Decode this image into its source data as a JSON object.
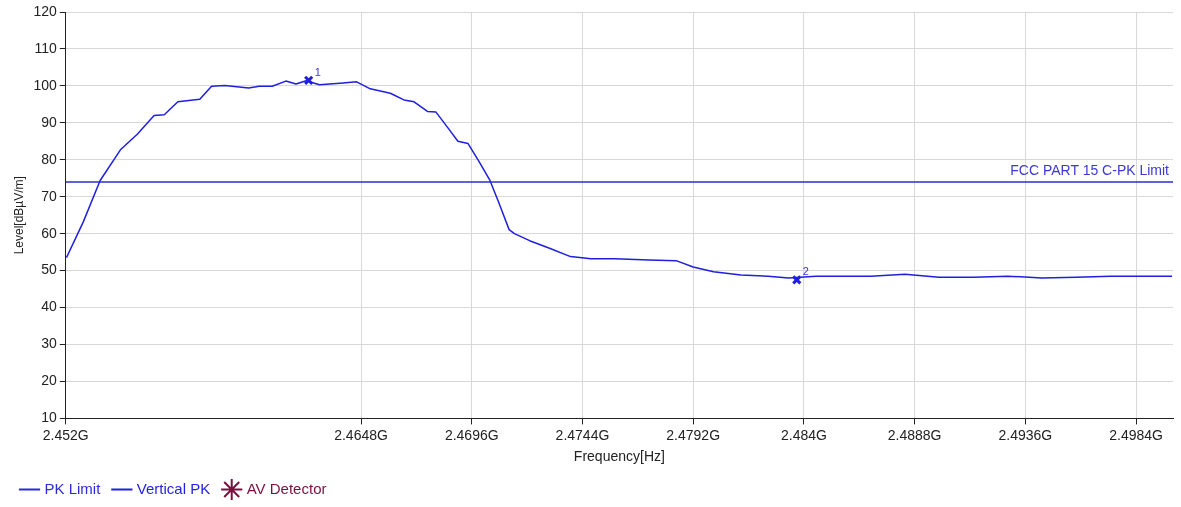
{
  "chart_data": {
    "type": "line",
    "xlabel": "Frequency[Hz]",
    "ylabel": "Level[dBµV/m]",
    "xlim": [
      2.452,
      2.5
    ],
    "xticks": [
      {
        "value": 2.452,
        "label": "2.452G"
      },
      {
        "value": 2.4648,
        "label": "2.4648G"
      },
      {
        "value": 2.4696,
        "label": "2.4696G"
      },
      {
        "value": 2.4744,
        "label": "2.4744G"
      },
      {
        "value": 2.4792,
        "label": "2.4792G"
      },
      {
        "value": 2.484,
        "label": "2.484G"
      },
      {
        "value": 2.4888,
        "label": "2.4888G"
      },
      {
        "value": 2.4936,
        "label": "2.4936G"
      },
      {
        "value": 2.4984,
        "label": "2.4984G"
      }
    ],
    "ylim": [
      10,
      120
    ],
    "yticks": [
      10,
      20,
      30,
      40,
      50,
      60,
      70,
      80,
      90,
      100,
      110,
      120
    ],
    "grid": true,
    "legend": "bottom left",
    "marker": "none",
    "line_style": "solid",
    "series": [
      {
        "name": "PK Limit",
        "color": "#2b2bd8",
        "x": [
          2.452,
          2.5
        ],
        "values": [
          74,
          74
        ]
      },
      {
        "name": "Vertical PK",
        "color": "#1f1fe0",
        "x": [
          2.45203,
          2.45276,
          2.45349,
          2.45437,
          2.4551,
          2.45583,
          2.45627,
          2.45686,
          2.45781,
          2.45832,
          2.4589,
          2.45993,
          2.46037,
          2.46095,
          2.46154,
          2.46198,
          2.46242,
          2.463,
          2.46403,
          2.46461,
          2.4652,
          2.46607,
          2.46666,
          2.4671,
          2.46768,
          2.46805,
          2.46856,
          2.469,
          2.46944,
          2.46988,
          2.47039,
          2.47075,
          2.47122,
          2.47145,
          2.47211,
          2.473,
          2.47388,
          2.47477,
          2.4758,
          2.47728,
          2.47846,
          2.4792,
          2.48008,
          2.48127,
          2.48245,
          2.48334,
          2.48452,
          2.4857,
          2.4869,
          2.48838,
          2.48986,
          2.49135,
          2.49283,
          2.49432,
          2.4958,
          2.49729,
          2.49877,
          2.49996
        ],
        "values": [
          53.5,
          63.2,
          74.4,
          82.7,
          86.9,
          92,
          92.2,
          95.7,
          96.4,
          99.9,
          100.1,
          99.4,
          99.9,
          99.9,
          101.3,
          100.5,
          101.4,
          100.3,
          100.8,
          101.1,
          99.2,
          98,
          96.2,
          95.7,
          93.1,
          92.9,
          88.7,
          85,
          84.4,
          79.9,
          74.4,
          68.8,
          61.1,
          60,
          58.1,
          56,
          53.8,
          53.2,
          53.2,
          52.9,
          52.7,
          51,
          49.7,
          48.8,
          48.5,
          48,
          48.5,
          48.5,
          48.5,
          49,
          48.2,
          48.2,
          48.5,
          48,
          48.2,
          48.5,
          48.5,
          48.5
        ]
      },
      {
        "type": "scatter",
        "marker": "cross",
        "color": "#1f1fe0",
        "x": [
          2.46253,
          2.48369
        ],
        "values": [
          101.5,
          47.5
        ]
      },
      {
        "name": "AV Detector",
        "type": "scatter",
        "marker": "star",
        "color": "#7a1040"
      }
    ],
    "annotations": [
      {
        "text": "1",
        "x": 2.46253,
        "y": 101.5
      },
      {
        "text": "2",
        "x": 2.48369,
        "y": 47.5
      },
      {
        "text": "FCC PART 15 C-PK Limit",
        "x": 2.5,
        "y": 74
      }
    ]
  }
}
